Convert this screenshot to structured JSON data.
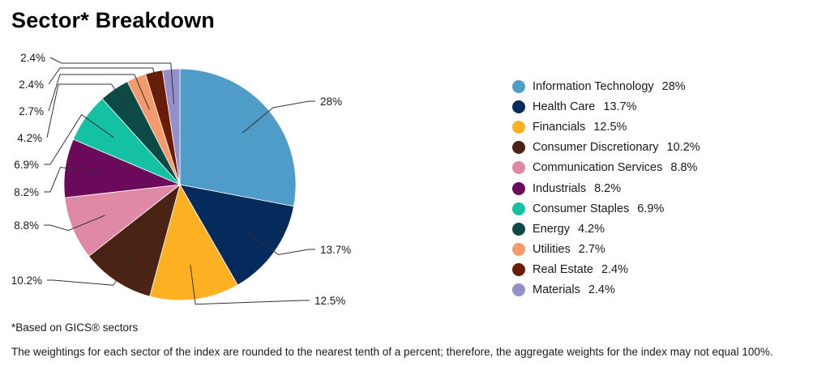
{
  "title": "Sector* Breakdown",
  "footnote": "*Based on GICS® sectors",
  "disclaimer": "The weightings for each sector of the index are rounded to the nearest tenth of a percent; therefore, the aggregate weights for the index may not equal 100%.",
  "chart_data": {
    "type": "pie",
    "title": "Sector* Breakdown",
    "legend_position": "right",
    "slices": [
      {
        "name": "Information Technology",
        "value": 28,
        "label": "28%",
        "color": "#4f9cc9"
      },
      {
        "name": "Health Care",
        "value": 13.7,
        "label": "13.7%",
        "color": "#052a5c"
      },
      {
        "name": "Financials",
        "value": 12.5,
        "label": "12.5%",
        "color": "#fdb022"
      },
      {
        "name": "Consumer Discretionary",
        "value": 10.2,
        "label": "10.2%",
        "color": "#4b2314"
      },
      {
        "name": "Communication Services",
        "value": 8.8,
        "label": "8.8%",
        "color": "#e089a6"
      },
      {
        "name": "Industrials",
        "value": 8.2,
        "label": "8.2%",
        "color": "#6b0a5a"
      },
      {
        "name": "Consumer Staples",
        "value": 6.9,
        "label": "6.9%",
        "color": "#14c2a3"
      },
      {
        "name": "Energy",
        "value": 4.2,
        "label": "4.2%",
        "color": "#0c4a46"
      },
      {
        "name": "Utilities",
        "value": 2.7,
        "label": "2.7%",
        "color": "#f59a6c"
      },
      {
        "name": "Real Estate",
        "value": 2.4,
        "label": "2.4%",
        "color": "#6b1c05"
      },
      {
        "name": "Materials",
        "value": 2.4,
        "label": "2.4%",
        "color": "#958fcc"
      }
    ]
  }
}
